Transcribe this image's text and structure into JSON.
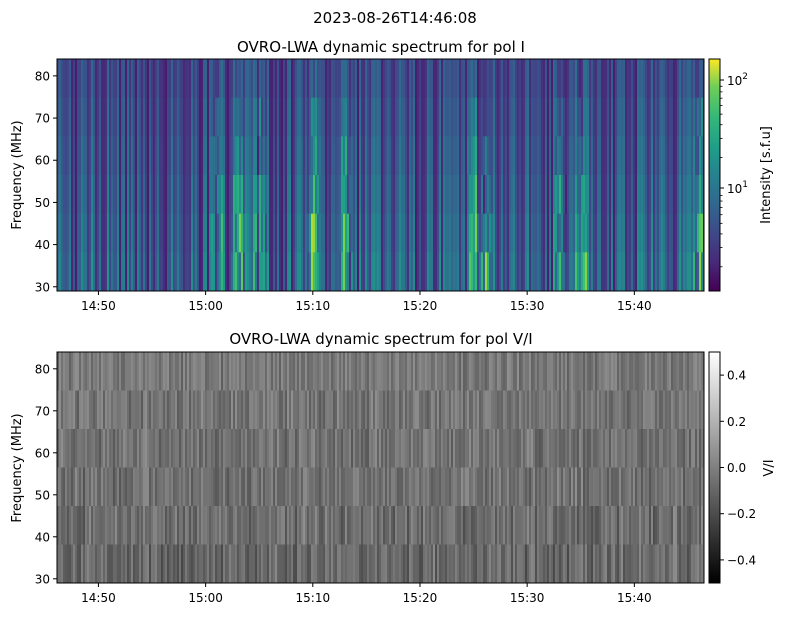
{
  "figure": {
    "suptitle": "2023-08-26T14:46:08"
  },
  "chart_data": [
    {
      "type": "heatmap",
      "title": "OVRO-LWA dynamic spectrum for pol I",
      "xlabel": "",
      "ylabel": "Frequency (MHz)",
      "x_ticks": [
        "14:50",
        "15:00",
        "15:10",
        "15:20",
        "15:30",
        "15:40"
      ],
      "x_range": [
        "14:46:08",
        "15:46:30"
      ],
      "y_ticks": [
        30,
        40,
        50,
        60,
        70,
        80
      ],
      "y_range": [
        29,
        84
      ],
      "colormap": "viridis",
      "color_scale": "log",
      "colorbar": {
        "label": "Intensity [s.f.u]",
        "ticks": [
          "10",
          "10"
        ],
        "tick_exponents": [
          "1",
          "2"
        ],
        "range": [
          1.2,
          160
        ]
      },
      "colors": {
        "low": "#440154",
        "mid": "#21918c",
        "high": "#fde725"
      },
      "intense_times": [
        "15:01",
        "15:03",
        "15:05",
        "15:10",
        "15:13",
        "15:25",
        "15:26",
        "15:33",
        "15:35",
        "15:46"
      ]
    },
    {
      "type": "heatmap",
      "title": "OVRO-LWA dynamic spectrum for pol V/I",
      "xlabel": "",
      "ylabel": "Frequency (MHz)",
      "x_ticks": [
        "14:50",
        "15:00",
        "15:10",
        "15:20",
        "15:30",
        "15:40"
      ],
      "x_range": [
        "14:46:08",
        "15:46:30"
      ],
      "y_ticks": [
        30,
        40,
        50,
        60,
        70,
        80
      ],
      "y_range": [
        29,
        84
      ],
      "colormap": "gray",
      "colorbar": {
        "label": "V/I",
        "ticks": [
          "0.4",
          "0.2",
          "0.0",
          "−0.2",
          "−0.4"
        ],
        "range": [
          -0.5,
          0.5
        ]
      },
      "colors": {
        "low": "#000000",
        "high": "#ffffff"
      }
    }
  ]
}
